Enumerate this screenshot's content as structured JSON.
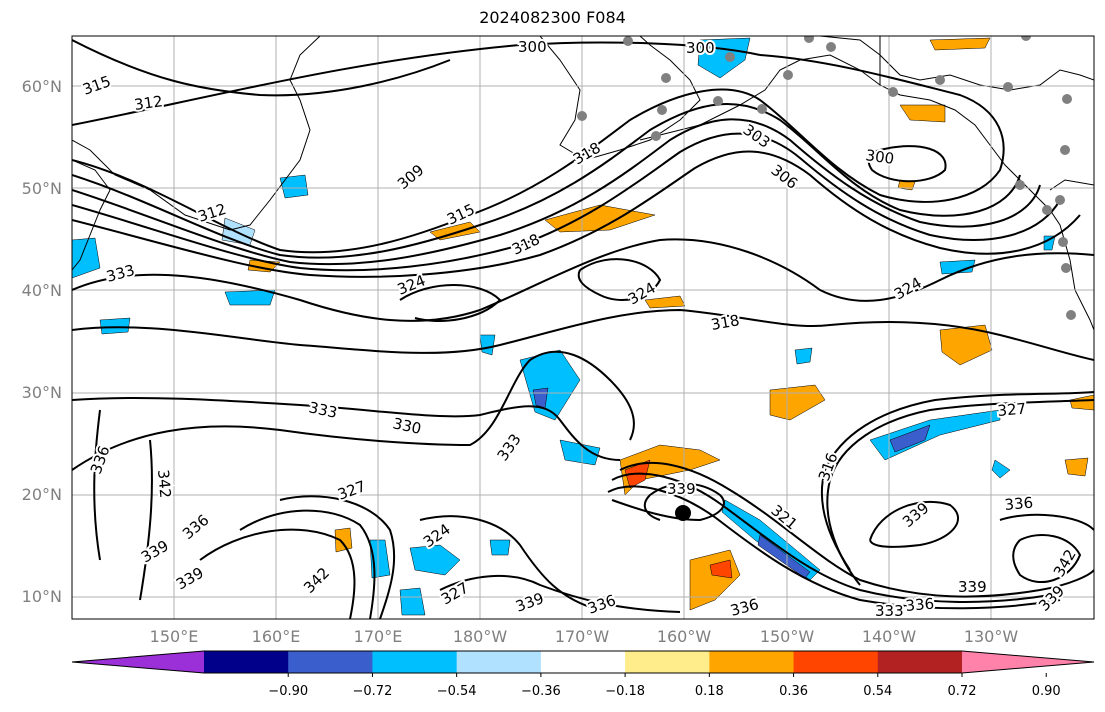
{
  "title": "2024082300 F084",
  "latitude_labels": [
    "10°N",
    "20°N",
    "30°N",
    "40°N",
    "50°N",
    "60°N"
  ],
  "longitude_labels": [
    "150°E",
    "160°E",
    "170°E",
    "180°W",
    "170°W",
    "160°W",
    "150°W",
    "140°W",
    "130°W"
  ],
  "colorbar": {
    "ticks": [
      "−0.90",
      "−0.72",
      "−0.54",
      "−0.36",
      "−0.18",
      "0.18",
      "0.36",
      "0.54",
      "0.72",
      "0.90"
    ],
    "colors": [
      "#9b30d9",
      "#00008b",
      "#3a5fcd",
      "#00bfff",
      "#b0e2ff",
      "#ffffff",
      "#ffec8b",
      "#ffa500",
      "#ff4500",
      "#b22222",
      "#ff82ab"
    ]
  },
  "contour_labels": [
    "300",
    "300",
    "315",
    "312",
    "303",
    "306",
    "300",
    "309",
    "318",
    "312",
    "315",
    "318",
    "333",
    "324",
    "324",
    "318",
    "324",
    "333",
    "330",
    "336",
    "342",
    "327",
    "333",
    "339",
    "316",
    "327",
    "321",
    "336",
    "339",
    "336",
    "339",
    "324",
    "342",
    "327",
    "339",
    "336",
    "339",
    "333",
    "336",
    "339",
    "342",
    "339"
  ],
  "markers": {
    "storm_center": "black-dot",
    "station_color": "#808080"
  }
}
